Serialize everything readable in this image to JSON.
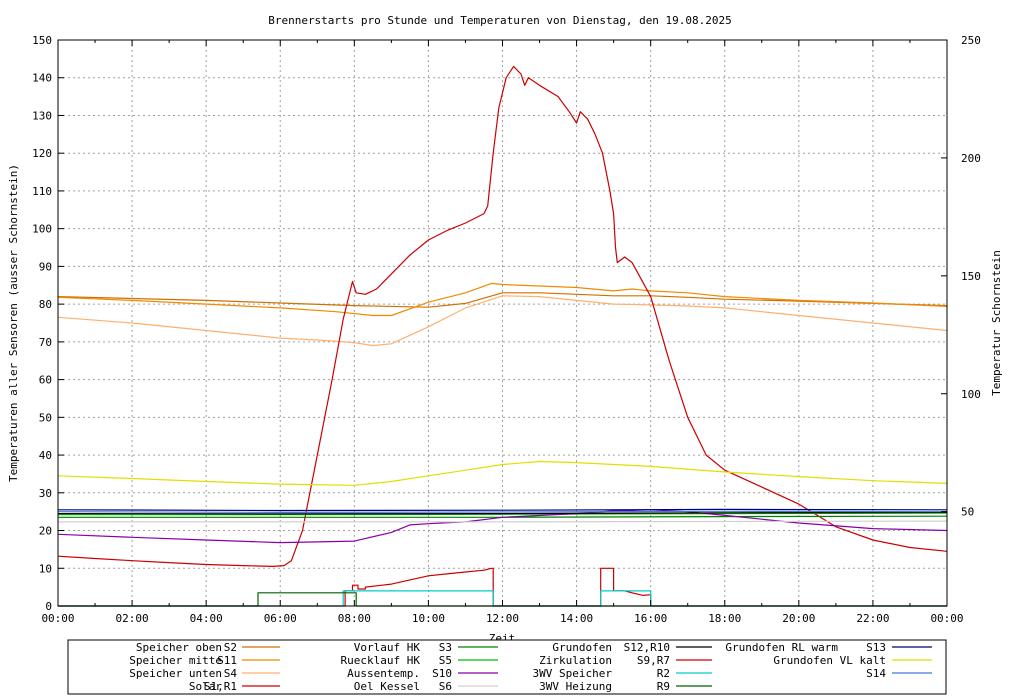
{
  "chart_data": {
    "type": "line",
    "title": "Brennerstarts pro Stunde und Temperaturen von Dienstag, den 19.08.2025",
    "xlabel": "Zeit",
    "ylabel": "Temperaturen aller Sensoren (ausser Schornstein)",
    "y2label": "Temperatur Schornstein",
    "y2label_color": "#ff66ff",
    "xlim": [
      0,
      24
    ],
    "ylim": [
      0,
      150
    ],
    "y2lim": [
      10,
      250
    ],
    "x_ticks": [
      "00:00",
      "02:00",
      "04:00",
      "06:00",
      "08:00",
      "10:00",
      "12:00",
      "14:00",
      "16:00",
      "18:00",
      "20:00",
      "22:00",
      "00:00"
    ],
    "y_ticks": [
      0,
      10,
      20,
      30,
      40,
      50,
      60,
      70,
      80,
      90,
      100,
      110,
      120,
      130,
      140,
      150
    ],
    "y2_ticks": [
      50,
      100,
      150,
      200,
      250
    ],
    "grid": true,
    "legend_position": "bottom",
    "series": [
      {
        "name": "Speicher oben",
        "code": "S2",
        "color": "#d07000",
        "axis": "y1",
        "points": [
          [
            0,
            82
          ],
          [
            2,
            81.5
          ],
          [
            4,
            81
          ],
          [
            6,
            80.3
          ],
          [
            8,
            79.6
          ],
          [
            10,
            79.2
          ],
          [
            11,
            80.2
          ],
          [
            12,
            83
          ],
          [
            13,
            83
          ],
          [
            14,
            82.6
          ],
          [
            15,
            82.2
          ],
          [
            16,
            82.2
          ],
          [
            17,
            81.8
          ],
          [
            18,
            81.3
          ],
          [
            20,
            80.8
          ],
          [
            22,
            80.2
          ],
          [
            24,
            79.6
          ]
        ]
      },
      {
        "name": "Speicher mitte",
        "code": "S11",
        "color": "#f08a00",
        "axis": "y1",
        "points": [
          [
            0,
            81.8
          ],
          [
            2,
            81
          ],
          [
            4,
            80
          ],
          [
            6,
            79
          ],
          [
            7.5,
            78
          ],
          [
            8.5,
            77
          ],
          [
            9,
            77
          ],
          [
            10,
            80.5
          ],
          [
            11,
            83
          ],
          [
            11.7,
            85.5
          ],
          [
            12,
            85.2
          ],
          [
            13,
            84.8
          ],
          [
            14,
            84.4
          ],
          [
            15,
            83.5
          ],
          [
            15.5,
            84
          ],
          [
            16,
            83.5
          ],
          [
            17,
            83
          ],
          [
            18,
            82
          ],
          [
            20,
            81
          ],
          [
            22,
            80.3
          ],
          [
            24,
            79.4
          ]
        ]
      },
      {
        "name": "Speicher unten",
        "code": "S4",
        "color": "#ffb070",
        "axis": "y1",
        "points": [
          [
            0,
            76.5
          ],
          [
            2,
            75
          ],
          [
            4,
            73
          ],
          [
            6,
            71
          ],
          [
            7,
            70.5
          ],
          [
            8,
            69.8
          ],
          [
            8.5,
            69
          ],
          [
            9,
            69.5
          ],
          [
            10,
            74
          ],
          [
            11,
            79
          ],
          [
            12,
            82.2
          ],
          [
            13,
            82
          ],
          [
            14,
            81
          ],
          [
            15,
            80
          ],
          [
            16,
            79.8
          ],
          [
            17,
            79.5
          ],
          [
            18,
            79
          ],
          [
            20,
            77
          ],
          [
            22,
            75
          ],
          [
            24,
            73
          ]
        ]
      },
      {
        "name": "Solar",
        "code": "S1,R1",
        "color": "#cc0000",
        "axis": "y1",
        "points": [
          [
            0,
            13.2
          ],
          [
            1,
            12.6
          ],
          [
            2,
            12
          ],
          [
            3,
            11.5
          ],
          [
            4,
            11
          ],
          [
            5,
            10.7
          ],
          [
            5.8,
            10.5
          ],
          [
            6.1,
            10.7
          ],
          [
            6.3,
            12
          ],
          [
            6.6,
            20
          ],
          [
            7,
            40
          ],
          [
            7.4,
            60
          ],
          [
            7.7,
            76
          ],
          [
            7.8,
            80
          ],
          [
            7.95,
            86
          ],
          [
            8.05,
            83
          ],
          [
            8.3,
            82.6
          ],
          [
            8.6,
            84
          ],
          [
            9,
            88
          ],
          [
            9.5,
            93
          ],
          [
            10,
            97
          ],
          [
            10.5,
            99.5
          ],
          [
            11,
            101.5
          ],
          [
            11.5,
            104
          ],
          [
            11.6,
            106
          ],
          [
            11.75,
            120
          ],
          [
            11.9,
            132
          ],
          [
            12.1,
            140
          ],
          [
            12.3,
            143
          ],
          [
            12.5,
            141
          ],
          [
            12.6,
            138
          ],
          [
            12.7,
            140
          ],
          [
            13,
            138
          ],
          [
            13.5,
            135
          ],
          [
            13.8,
            131
          ],
          [
            14,
            128
          ],
          [
            14.1,
            131
          ],
          [
            14.3,
            129
          ],
          [
            14.5,
            125
          ],
          [
            14.7,
            120
          ],
          [
            14.9,
            110
          ],
          [
            15,
            104
          ],
          [
            15.05,
            95
          ],
          [
            15.1,
            91
          ],
          [
            15.3,
            92.5
          ],
          [
            15.5,
            91
          ],
          [
            16,
            82
          ],
          [
            16.5,
            65
          ],
          [
            17,
            50
          ],
          [
            17.5,
            40
          ],
          [
            18,
            36
          ],
          [
            19,
            31.5
          ],
          [
            20,
            27
          ],
          [
            20.5,
            24
          ],
          [
            21,
            21
          ],
          [
            22,
            17.5
          ],
          [
            23,
            15.5
          ],
          [
            24,
            14.5
          ]
        ]
      },
      {
        "name": "Vorlauf HK",
        "code": "S3",
        "color": "#008000",
        "axis": "y1",
        "points": [
          [
            0,
            23.5
          ],
          [
            6,
            23.5
          ],
          [
            12,
            23.5
          ],
          [
            18,
            23.7
          ],
          [
            24,
            23.8
          ]
        ]
      },
      {
        "name": "Ruecklauf HK",
        "code": "S5",
        "color": "#00c000",
        "axis": "y1",
        "points": [
          [
            0,
            24.2
          ],
          [
            6,
            24.2
          ],
          [
            12,
            24.3
          ],
          [
            18,
            24.5
          ],
          [
            24,
            24.6
          ]
        ]
      },
      {
        "name": "Aussentemp.",
        "code": "S10",
        "color": "#8800aa",
        "axis": "y1",
        "points": [
          [
            0,
            19
          ],
          [
            2,
            18.2
          ],
          [
            4,
            17.5
          ],
          [
            6,
            16.8
          ],
          [
            7,
            17
          ],
          [
            8,
            17.2
          ],
          [
            9,
            19.5
          ],
          [
            9.5,
            21.5
          ],
          [
            10,
            21.8
          ],
          [
            11,
            22.3
          ],
          [
            12,
            23.5
          ],
          [
            14,
            24.5
          ],
          [
            15,
            25.2
          ],
          [
            16,
            25.5
          ],
          [
            17,
            25
          ],
          [
            18,
            24
          ],
          [
            20,
            22
          ],
          [
            22,
            20.5
          ],
          [
            24,
            20
          ]
        ]
      },
      {
        "name": "Oel Kessel",
        "code": "S6",
        "color": "#d0d0d0",
        "axis": "y1",
        "points": [
          [
            0,
            22.3
          ],
          [
            6,
            22.3
          ],
          [
            12,
            22.3
          ],
          [
            18,
            22.4
          ],
          [
            24,
            22.5
          ]
        ]
      },
      {
        "name": "Grundofen",
        "code": "S12,R10",
        "color": "#000000",
        "axis": "y1",
        "points": [
          [
            0,
            24.5
          ],
          [
            6,
            24.4
          ],
          [
            12,
            24.5
          ],
          [
            18,
            24.7
          ],
          [
            24,
            24.8
          ]
        ]
      },
      {
        "name": "Zirkulation",
        "code": "S9,R7",
        "color": "#cc0000",
        "axis": "y1",
        "step": true,
        "points": [
          [
            0,
            0
          ],
          [
            7.75,
            0
          ],
          [
            7.75,
            4
          ],
          [
            7.95,
            4
          ],
          [
            7.95,
            5.5
          ],
          [
            8.1,
            5.5
          ],
          [
            8.1,
            4.5
          ],
          [
            8.3,
            4.5
          ],
          [
            8.3,
            5
          ],
          [
            9,
            5.8
          ],
          [
            10,
            8
          ],
          [
            10.5,
            8.5
          ],
          [
            11,
            9
          ],
          [
            11.5,
            9.5
          ],
          [
            11.7,
            10
          ],
          [
            11.75,
            10
          ],
          [
            11.75,
            0
          ],
          [
            14.65,
            0
          ],
          [
            14.65,
            10
          ],
          [
            15,
            10
          ],
          [
            15,
            4
          ],
          [
            15.3,
            4
          ],
          [
            15.5,
            3.5
          ],
          [
            15.8,
            2.8
          ],
          [
            16,
            3
          ],
          [
            16,
            0
          ],
          [
            24,
            0
          ]
        ]
      },
      {
        "name": "3WV Speicher",
        "code": "R2",
        "color": "#00cccc",
        "axis": "y1",
        "step": true,
        "points": [
          [
            0,
            0
          ],
          [
            7.7,
            0
          ],
          [
            7.7,
            4
          ],
          [
            11.75,
            4
          ],
          [
            11.75,
            0
          ],
          [
            14.65,
            0
          ],
          [
            14.65,
            4
          ],
          [
            16,
            4
          ],
          [
            16,
            0
          ],
          [
            24,
            0
          ]
        ]
      },
      {
        "name": "3WV Heizung",
        "code": "R9",
        "color": "#006000",
        "axis": "y1",
        "step": true,
        "points": [
          [
            0,
            0
          ],
          [
            5.4,
            0
          ],
          [
            5.4,
            3.5
          ],
          [
            8.05,
            3.5
          ],
          [
            8.05,
            0
          ],
          [
            24,
            0
          ]
        ]
      },
      {
        "name": "Grundofen RL warm",
        "code": "S13",
        "color": "#000080",
        "axis": "y1",
        "points": [
          [
            0,
            25.5
          ],
          [
            6,
            25.3
          ],
          [
            12,
            25.4
          ],
          [
            18,
            25.6
          ],
          [
            24,
            25.5
          ]
        ]
      },
      {
        "name": "Grundofen VL kalt",
        "code": "",
        "color": "#e0e000",
        "axis": "y1",
        "points": [
          [
            0,
            34.5
          ],
          [
            2,
            33.8
          ],
          [
            4,
            33
          ],
          [
            6,
            32.3
          ],
          [
            8,
            32
          ],
          [
            9,
            33
          ],
          [
            10,
            34.5
          ],
          [
            11,
            36
          ],
          [
            12,
            37.5
          ],
          [
            13,
            38.3
          ],
          [
            14,
            38
          ],
          [
            15,
            37.5
          ],
          [
            16,
            37
          ],
          [
            18,
            35.5
          ],
          [
            20,
            34.3
          ],
          [
            22,
            33.2
          ],
          [
            24,
            32.5
          ]
        ]
      },
      {
        "name": "",
        "code": "S14",
        "color": "#4477dd",
        "axis": "y1",
        "points": [
          [
            0,
            25
          ],
          [
            6,
            24.8
          ],
          [
            12,
            24.9
          ],
          [
            18,
            25.1
          ],
          [
            24,
            25
          ]
        ]
      }
    ]
  }
}
